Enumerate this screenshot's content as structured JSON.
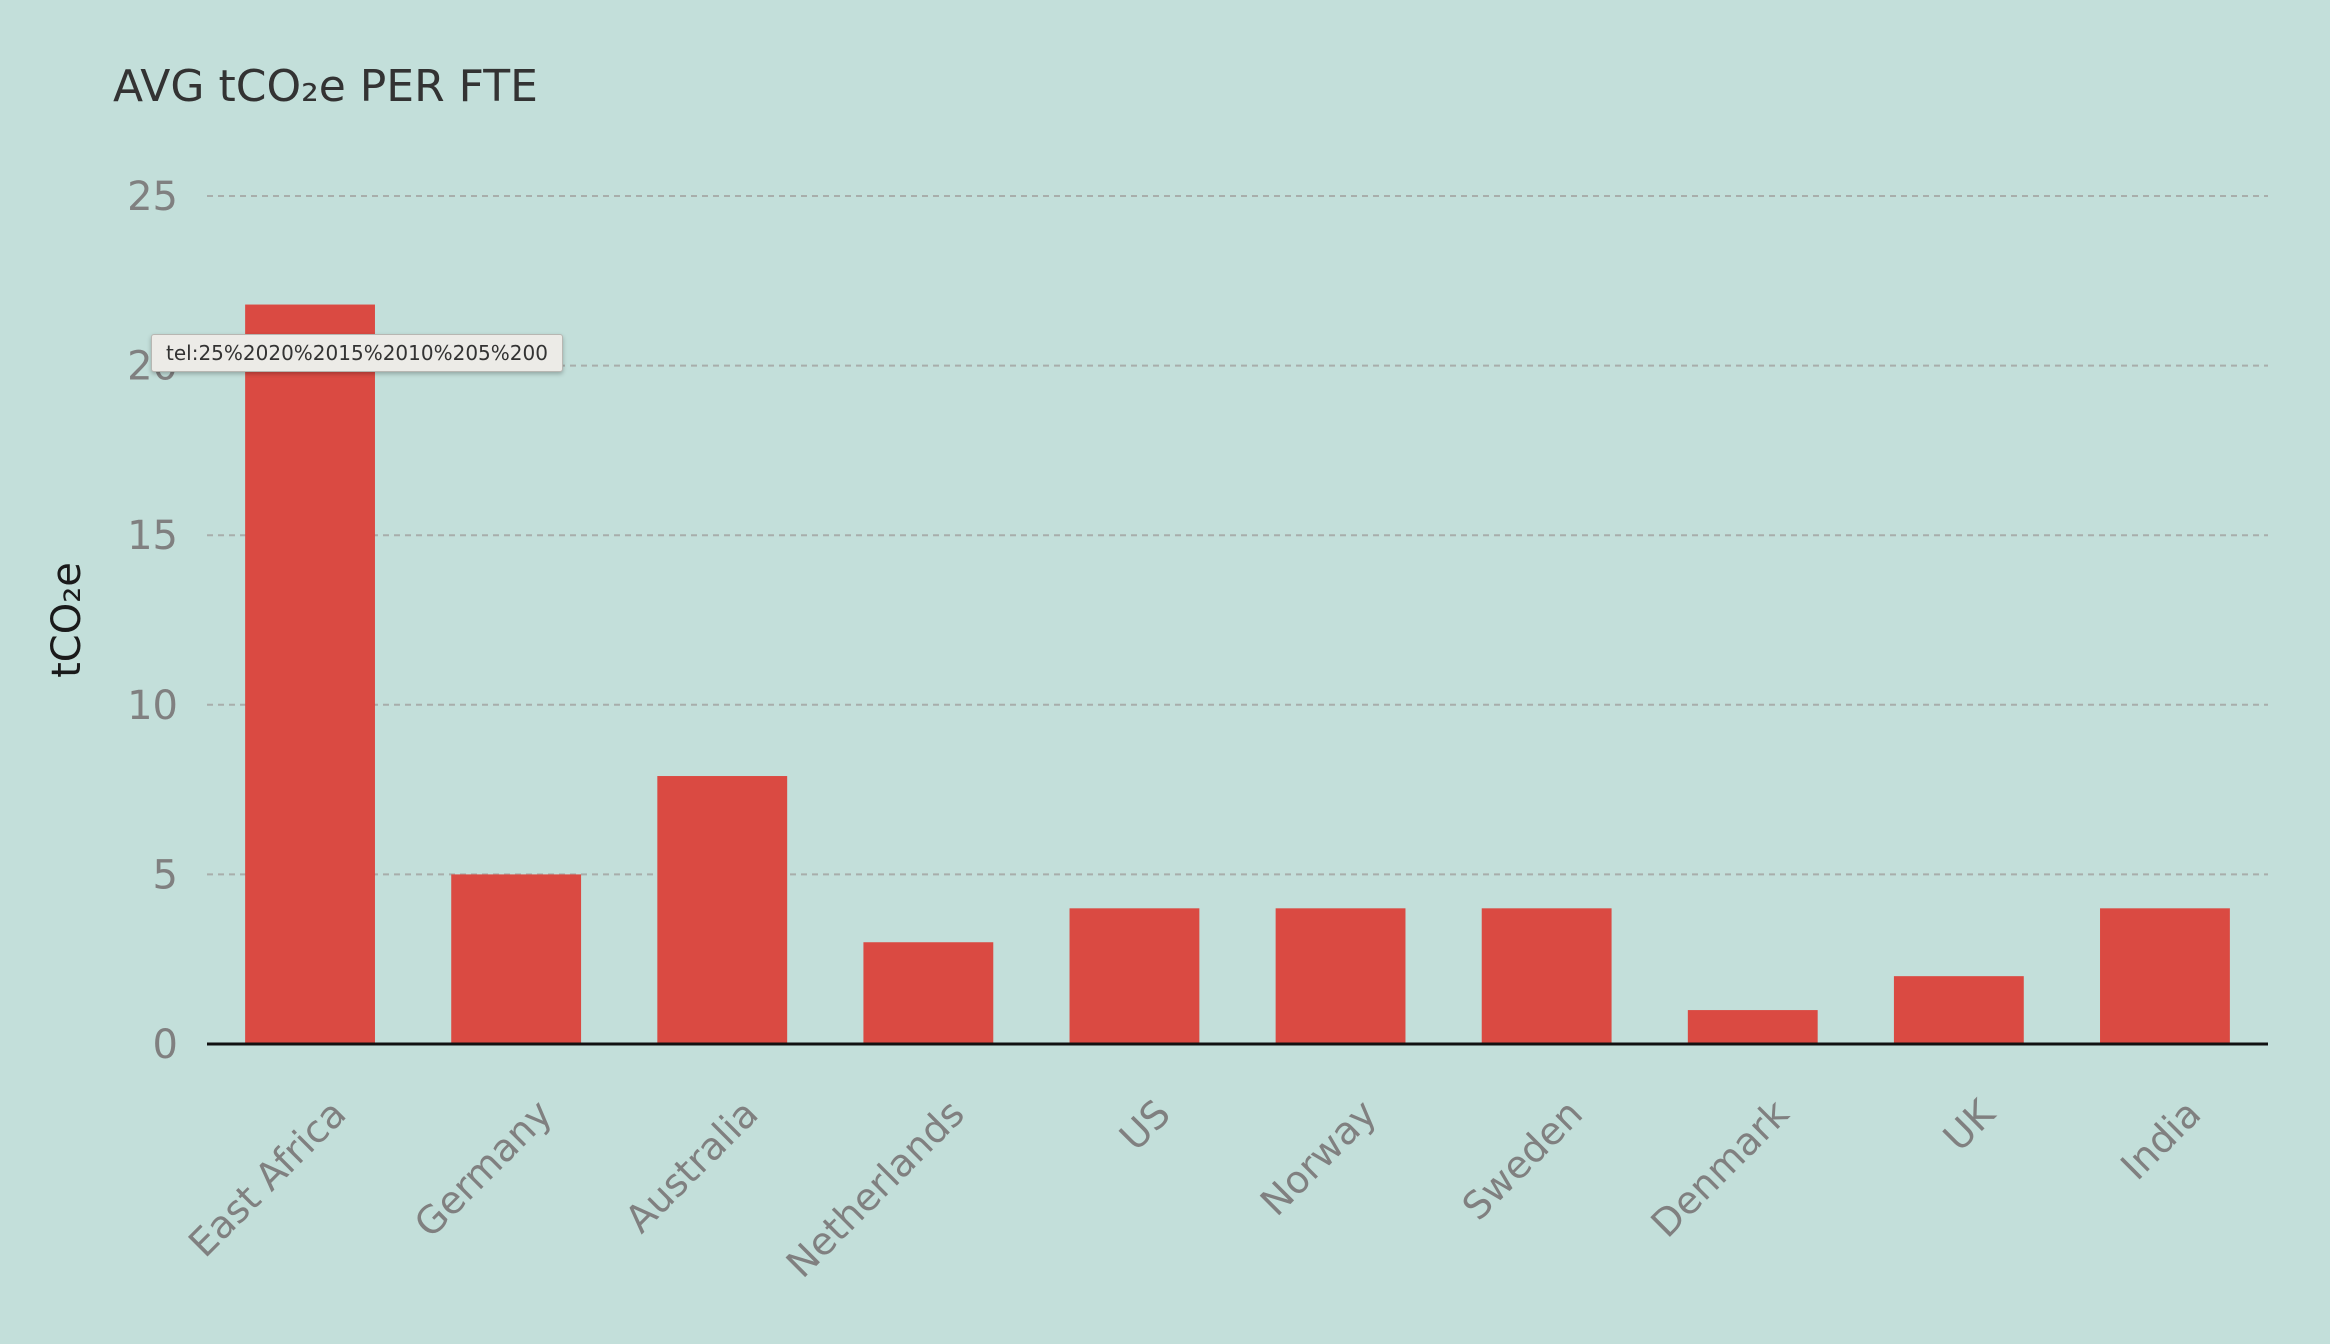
{
  "colors": {
    "background": "#c3dfda",
    "bar": "#da4a42",
    "grid": "#a8aeab",
    "axis": "#111111"
  },
  "tooltip": {
    "text": "tel:25%2020%2015%2010%205%200"
  },
  "chart_data": {
    "type": "bar",
    "title": "AVG tCO₂e PER FTE",
    "xlabel": "",
    "ylabel": "tCO₂e",
    "ylim": [
      0,
      25
    ],
    "yticks": [
      "0",
      "5",
      "10",
      "15",
      "20",
      "25"
    ],
    "grid": true,
    "legend": "none",
    "categories": [
      "East Africa",
      "Germany",
      "Australia",
      "Netherlands",
      "US",
      "Norway",
      "Sweden",
      "Denmark",
      "UK",
      "India"
    ],
    "values": [
      21.8,
      5,
      7.9,
      3,
      4,
      4,
      4,
      1,
      2,
      4
    ]
  }
}
